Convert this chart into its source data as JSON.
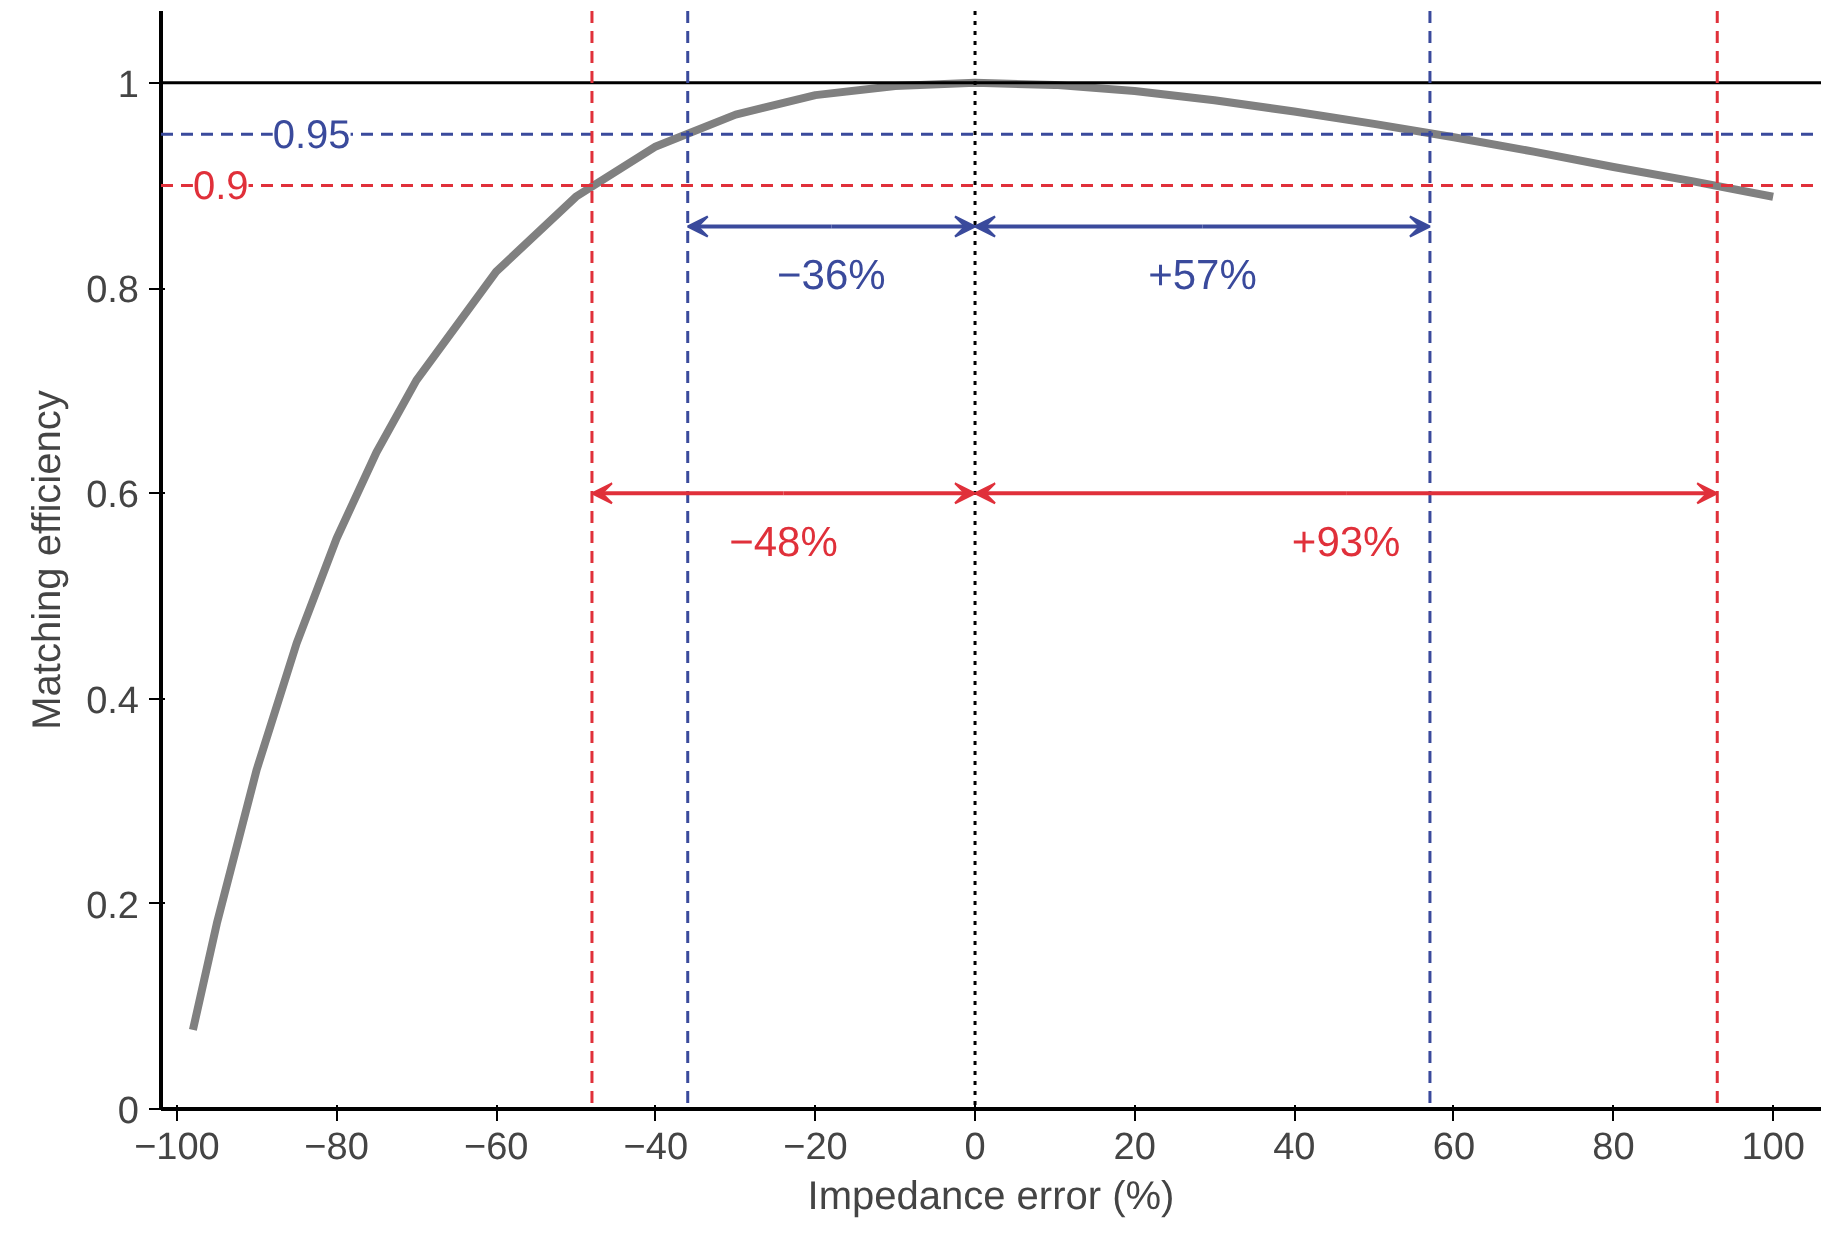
{
  "chart_data": {
    "type": "line",
    "xlabel": "Impedance error (%)",
    "ylabel": "Matching efficiency",
    "x": [
      -98,
      -95,
      -90,
      -85,
      -80,
      -75,
      -70,
      -60,
      -50,
      -40,
      -30,
      -20,
      -10,
      0,
      10,
      20,
      30,
      40,
      50,
      60,
      70,
      80,
      90,
      100
    ],
    "series": [
      {
        "color": "#808080",
        "values": [
          0.077,
          0.181,
          0.331,
          0.454,
          0.556,
          0.64,
          0.71,
          0.816,
          0.889,
          0.938,
          0.969,
          0.988,
          0.997,
          1.0,
          0.998,
          0.992,
          0.983,
          0.972,
          0.96,
          0.947,
          0.933,
          0.918,
          0.904,
          0.889
        ]
      }
    ],
    "xlim": [
      -102,
      106
    ],
    "ylim": [
      0,
      1.07
    ],
    "xticks": [
      {
        "value": -100,
        "label": "−100"
      },
      {
        "value": -80,
        "label": "−80"
      },
      {
        "value": -60,
        "label": "−60"
      },
      {
        "value": -40,
        "label": "−40"
      },
      {
        "value": -20,
        "label": "−20"
      },
      0,
      20,
      40,
      60,
      80,
      100
    ],
    "yticks": [
      0,
      0.2,
      0.4,
      0.6,
      0.8,
      1
    ],
    "grid": false,
    "marker": "none",
    "line_style": "solid",
    "ref_lines": [
      {
        "axis": "y",
        "value": 1,
        "label": null,
        "color": "#000000",
        "line_style": "solid"
      },
      {
        "axis": "y",
        "value": 0.95,
        "label": "0.95",
        "color": "#3a4a9c",
        "line_style": "dashed"
      },
      {
        "axis": "y",
        "value": 0.9,
        "label": "0.9",
        "color": "#e0303a",
        "line_style": "dashed"
      },
      {
        "axis": "x",
        "value": -48,
        "label": null,
        "color": "#e0303a",
        "line_style": "dashed"
      },
      {
        "axis": "x",
        "value": -36,
        "label": null,
        "color": "#3a4a9c",
        "line_style": "dashed"
      },
      {
        "axis": "x",
        "value": 0,
        "label": null,
        "color": "#000000",
        "line_style": "dotted"
      },
      {
        "axis": "x",
        "value": 57,
        "label": null,
        "color": "#3a4a9c",
        "line_style": "dashed"
      },
      {
        "axis": "x",
        "value": 93,
        "label": null,
        "color": "#e0303a",
        "line_style": "dashed"
      }
    ],
    "annotations": [
      {
        "text": "−36%",
        "x": -36,
        "y": 0.86
      },
      {
        "text": "+57%",
        "x": 57,
        "y": 0.86
      },
      {
        "text": "−48%",
        "x": -48,
        "y": 0.6
      },
      {
        "text": "+93%",
        "x": 93,
        "y": 0.6
      }
    ]
  }
}
